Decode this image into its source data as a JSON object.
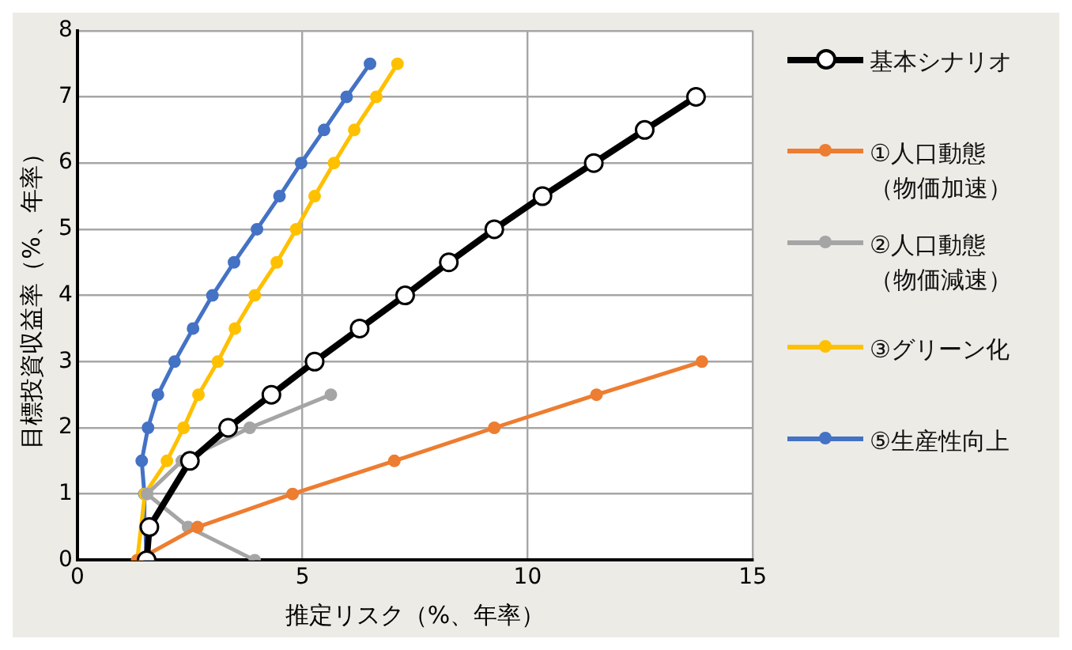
{
  "chart_data": {
    "type": "line",
    "xlabel": "推定リスク（%、年率）",
    "ylabel": "目標投資収益率（%、年率）",
    "xlim": [
      0,
      15
    ],
    "xticks": [
      0,
      5,
      10,
      15
    ],
    "ylim": [
      0,
      8
    ],
    "yticks": [
      0,
      1,
      2,
      3,
      4,
      5,
      6,
      7,
      8
    ],
    "grid": true,
    "legend": "right",
    "marker": "circle",
    "line_style": "solid",
    "series": [
      {
        "name": "基本シナリオ",
        "color": "#000000",
        "x": [
          1.54,
          1.6,
          2.5,
          3.35,
          4.31,
          5.27,
          6.27,
          7.28,
          8.25,
          9.26,
          10.33,
          11.47,
          12.6,
          13.74
        ],
        "values": [
          0,
          0.5,
          1.5,
          2,
          2.5,
          3,
          3.5,
          4,
          4.5,
          5,
          5.5,
          6,
          6.5,
          7
        ]
      },
      {
        "name": "①人口動態（物価加速）",
        "color": "#ed7d31",
        "x": [
          1.33,
          2.67,
          4.78,
          7.04,
          9.26,
          11.53,
          13.87
        ],
        "values": [
          0,
          0.5,
          1,
          1.5,
          2,
          2.5,
          3
        ]
      },
      {
        "name": "②人口動態（物価減速）",
        "color": "#a5a5a5",
        "x": [
          3.94,
          2.46,
          1.55,
          2.32,
          3.83,
          5.63
        ],
        "values": [
          0,
          0.5,
          1,
          1.5,
          2,
          2.5
        ]
      },
      {
        "name": "③グリーン化",
        "color": "#ffc000",
        "x": [
          1.33,
          1.5,
          1.99,
          2.36,
          2.69,
          3.12,
          3.5,
          3.94,
          4.43,
          4.86,
          5.27,
          5.7,
          6.15,
          6.64,
          7.11
        ],
        "values": [
          0,
          1,
          1.5,
          2,
          2.5,
          3,
          3.5,
          4,
          4.5,
          5,
          5.5,
          6,
          6.5,
          7,
          7.5
        ]
      },
      {
        "name": "⑤生産性向上",
        "color": "#4472c4",
        "x": [
          1.54,
          1.51,
          1.49,
          1.43,
          1.57,
          1.79,
          2.16,
          2.57,
          3,
          3.48,
          3.99,
          4.49,
          4.97,
          5.48,
          5.98,
          6.5
        ],
        "values": [
          0,
          0.5,
          1,
          1.5,
          2,
          2.5,
          3,
          3.5,
          4,
          4.5,
          5,
          5.5,
          6,
          6.5,
          7,
          7.5
        ]
      }
    ]
  }
}
